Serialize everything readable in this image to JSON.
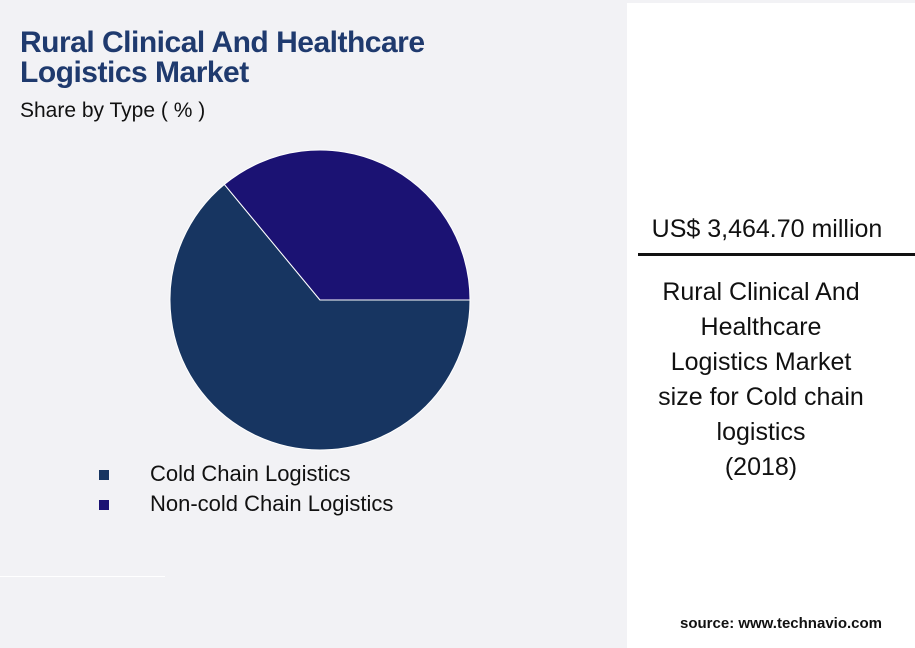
{
  "chart_data": {
    "type": "pie",
    "title": "Rural Clinical And Healthcare Logistics Market",
    "subtitle": "Share by Type ( % )",
    "categories": [
      "Cold Chain Logistics",
      "Non-cold Chain Logistics"
    ],
    "values": [
      64,
      36
    ],
    "colors": [
      "#173561",
      "#1b1273"
    ]
  },
  "panel": {
    "value": "US$ 3,464.70 million",
    "description": [
      "Rural Clinical And",
      "Healthcare",
      "Logistics Market",
      "size for Cold chain",
      "logistics",
      "(2018)"
    ]
  },
  "source": "source: www.technavio.com"
}
